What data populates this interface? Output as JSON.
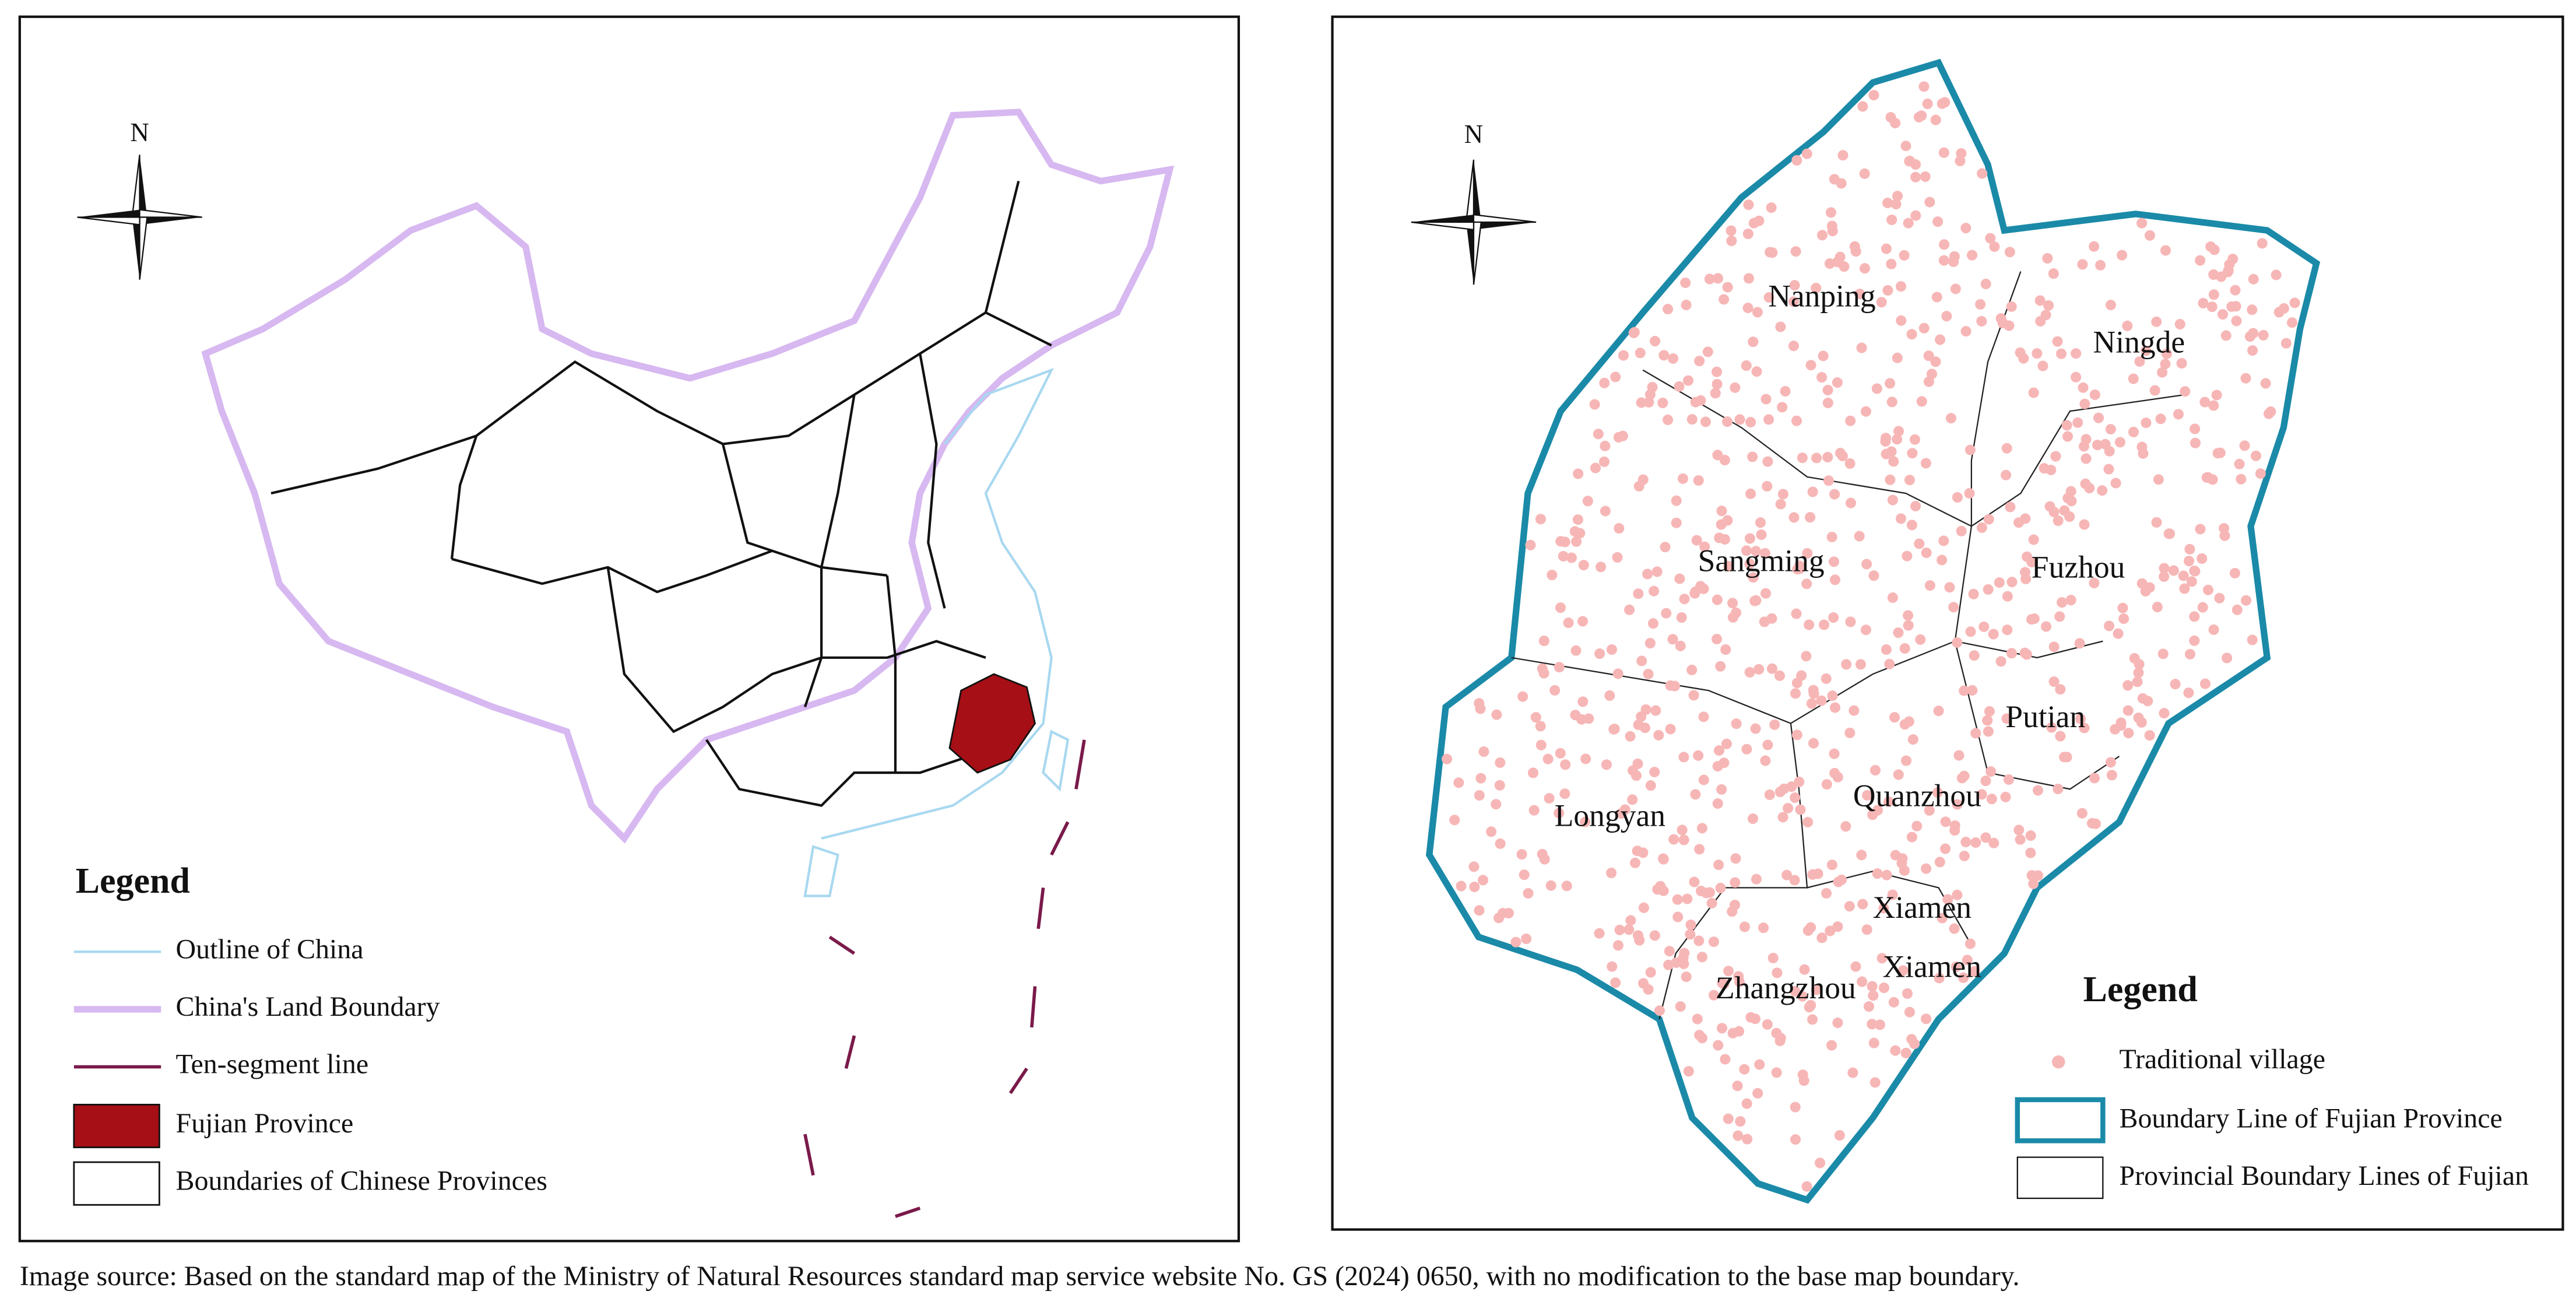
{
  "left_map": {
    "compass_label": "N",
    "legend": {
      "title": "Legend",
      "items": [
        "Outline of China",
        "China's Land Boundary",
        "Ten-segment line",
        "Fujian Province",
        "Boundaries of Chinese Provinces"
      ]
    }
  },
  "right_map": {
    "compass_label": "N",
    "city_labels": [
      "Nanping",
      "Ningde",
      "Sangming",
      "Fuzhou",
      "Putian",
      "Quanzhou",
      "Longyan",
      "Xiamen",
      "Xiamen",
      "Zhangzhou"
    ],
    "legend": {
      "title": "Legend",
      "items": [
        "Traditional village",
        "Boundary Line of Fujian Province",
        "Provincial Boundary Lines of Fujian"
      ]
    }
  },
  "caption": "Image source: Based on the standard map of the Ministry of Natural Resources standard map service website No. GS (2024) 0650, with no modification to the base map boundary."
}
